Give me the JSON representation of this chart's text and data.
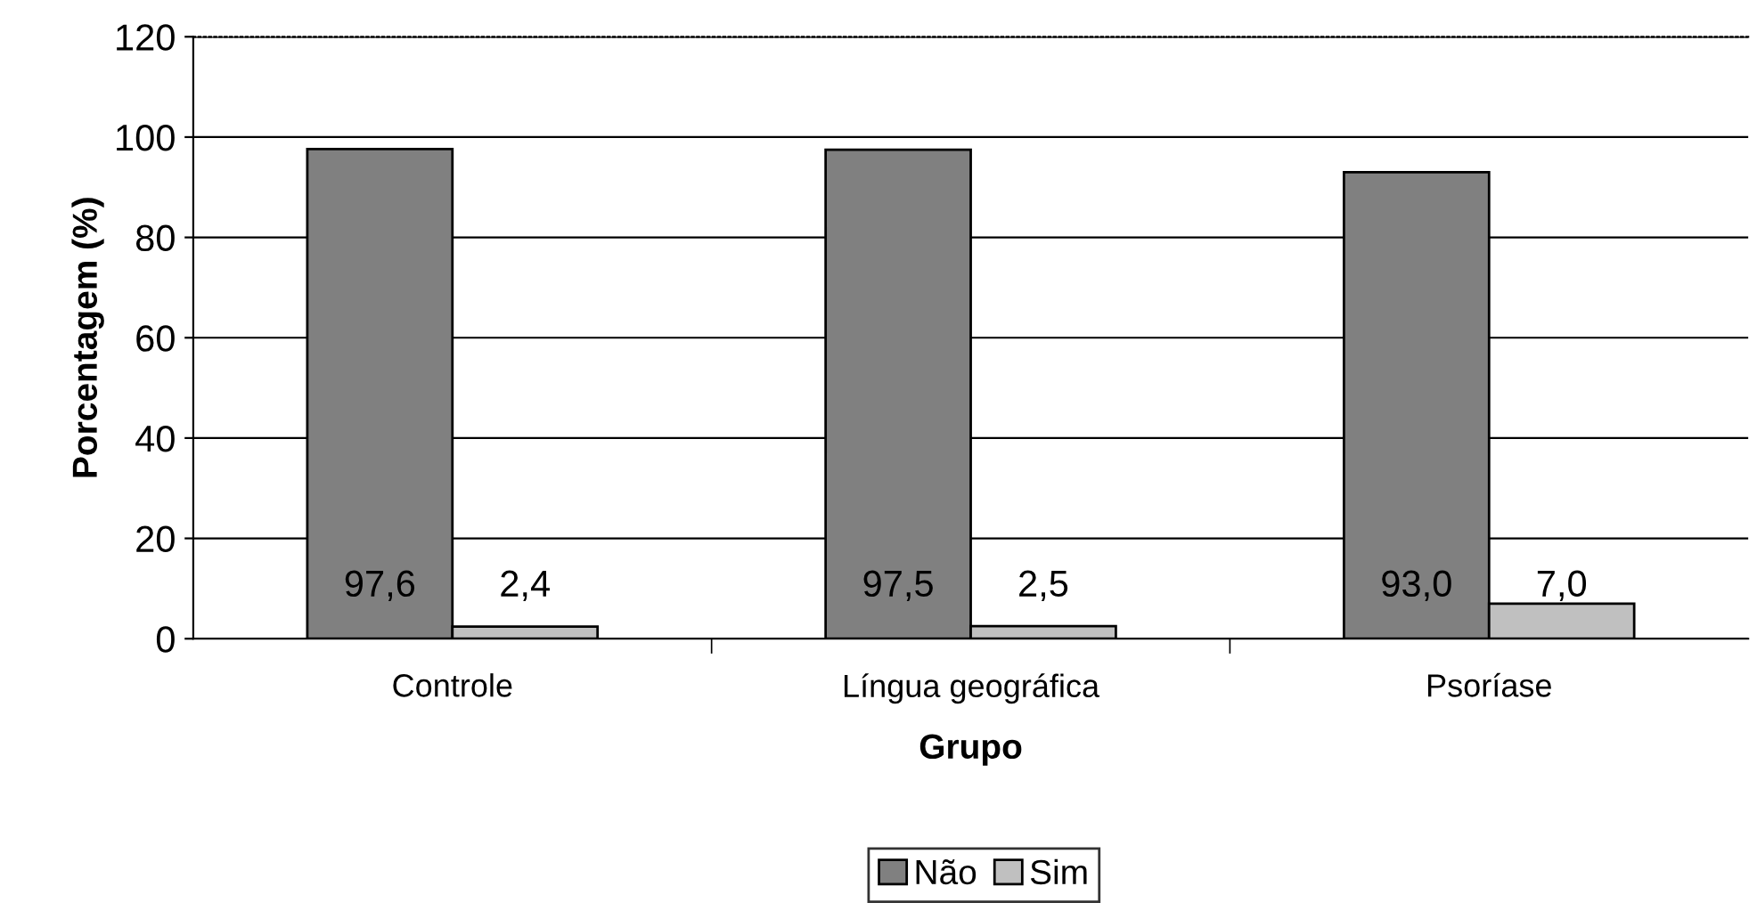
{
  "chart_data": {
    "type": "bar",
    "xlabel": "Grupo",
    "ylabel": "Porcentagem (%)",
    "categories": [
      "Controle",
      "Língua geográfica",
      "Psoríase"
    ],
    "series": [
      {
        "name": "Não",
        "color": "#808080",
        "values": [
          97.6,
          97.5,
          93.0
        ],
        "value_labels": [
          "97,6",
          "97,5",
          "93,0"
        ]
      },
      {
        "name": "Sim",
        "color": "#c0c0c0",
        "values": [
          2.4,
          2.5,
          7.0
        ],
        "value_labels": [
          "2,4",
          "2,5",
          "7,0"
        ]
      }
    ],
    "ylim": [
      0,
      120
    ],
    "yticks": [
      0,
      20,
      40,
      60,
      80,
      100,
      120
    ],
    "grid": "y",
    "legend": "bottom"
  }
}
